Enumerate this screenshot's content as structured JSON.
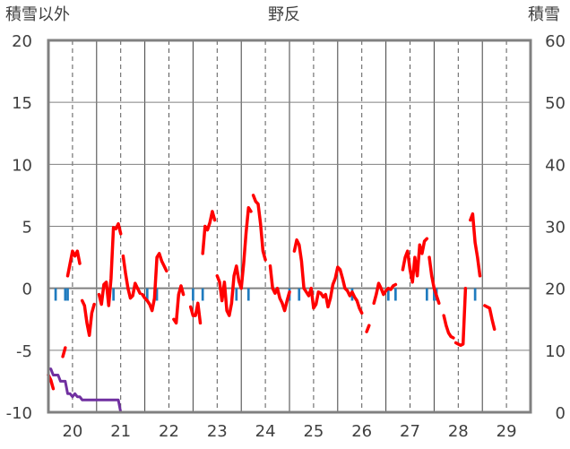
{
  "chart_data": {
    "type": "line",
    "title": "野反",
    "left_axis_label": "積雪以外",
    "right_axis_label": "積雪",
    "left_ylim": [
      -10,
      20
    ],
    "left_yticks": [
      "-10",
      "-5",
      "0",
      "5",
      "10",
      "15",
      "20"
    ],
    "right_ylim": [
      0,
      60
    ],
    "right_yticks": [
      "0",
      "10",
      "20",
      "30",
      "40",
      "50",
      "60"
    ],
    "xlim": [
      19.5,
      29.5
    ],
    "xticks": [
      "20",
      "21",
      "22",
      "23",
      "24",
      "25",
      "26",
      "27",
      "28",
      "29"
    ],
    "grid": true,
    "colors": {
      "temperature": "#ff0000",
      "precip": "#1f7bbf",
      "snow": "#7030a0",
      "frame": "#808080"
    },
    "series": [
      {
        "type": "line",
        "axis": "left",
        "color": "#ff0000",
        "segments": [
          [
            [
              19.5,
              -7.0
            ],
            [
              19.55,
              -7.4
            ],
            [
              19.6,
              -8.1
            ]
          ],
          [
            [
              19.8,
              -5.5
            ],
            [
              19.85,
              -4.8
            ]
          ],
          [
            [
              19.9,
              1.0
            ],
            [
              19.95,
              2.0
            ],
            [
              20.0,
              3.0
            ],
            [
              20.05,
              2.6
            ],
            [
              20.1,
              3.0
            ],
            [
              20.15,
              2.0
            ]
          ],
          [
            [
              20.2,
              -1.0
            ],
            [
              20.25,
              -1.4
            ],
            [
              20.3,
              -2.8
            ],
            [
              20.35,
              -3.8
            ],
            [
              20.4,
              -2.0
            ],
            [
              20.45,
              -1.3
            ]
          ],
          [
            [
              20.55,
              -0.5
            ],
            [
              20.6,
              -1.3
            ],
            [
              20.65,
              0.3
            ],
            [
              20.7,
              0.5
            ],
            [
              20.75,
              -1.4
            ],
            [
              20.8,
              0.8
            ],
            [
              20.85,
              4.9
            ],
            [
              20.9,
              4.8
            ],
            [
              20.95,
              5.2
            ],
            [
              21.0,
              4.4
            ]
          ],
          [
            [
              21.05,
              2.6
            ],
            [
              21.1,
              1.2
            ],
            [
              21.15,
              0.0
            ],
            [
              21.2,
              -0.8
            ],
            [
              21.25,
              -0.6
            ],
            [
              21.3,
              0.4
            ],
            [
              21.35,
              0.0
            ],
            [
              21.4,
              -0.4
            ]
          ],
          [
            [
              21.45,
              -0.5
            ],
            [
              21.5,
              -0.8
            ],
            [
              21.55,
              -1.0
            ],
            [
              21.6,
              -1.3
            ],
            [
              21.65,
              -1.8
            ],
            [
              21.7,
              -0.8
            ],
            [
              21.75,
              2.5
            ],
            [
              21.8,
              2.8
            ],
            [
              21.85,
              2.2
            ],
            [
              21.9,
              1.8
            ],
            [
              21.95,
              1.4
            ]
          ],
          [
            [
              22.1,
              -2.5
            ],
            [
              22.15,
              -2.8
            ],
            [
              22.2,
              -0.5
            ],
            [
              22.25,
              0.2
            ],
            [
              22.3,
              -0.5
            ]
          ],
          [
            [
              22.45,
              -1.5
            ],
            [
              22.5,
              -2.2
            ],
            [
              22.55,
              -2.2
            ],
            [
              22.6,
              -1.2
            ],
            [
              22.65,
              -2.8
            ]
          ],
          [
            [
              22.7,
              2.8
            ],
            [
              22.75,
              5.0
            ],
            [
              22.8,
              4.7
            ],
            [
              22.85,
              5.3
            ],
            [
              22.9,
              6.2
            ],
            [
              22.95,
              5.5
            ]
          ],
          [
            [
              23.0,
              1.0
            ],
            [
              23.05,
              0.5
            ],
            [
              23.1,
              -1.0
            ],
            [
              23.15,
              0.5
            ],
            [
              23.2,
              -1.8
            ],
            [
              23.25,
              -2.2
            ],
            [
              23.3,
              -1.2
            ],
            [
              23.35,
              1.0
            ],
            [
              23.4,
              1.8
            ],
            [
              23.45,
              0.6
            ],
            [
              23.5,
              0.0
            ],
            [
              23.55,
              2.0
            ],
            [
              23.6,
              4.5
            ],
            [
              23.65,
              6.5
            ],
            [
              23.7,
              6.2
            ]
          ],
          [
            [
              23.75,
              7.5
            ],
            [
              23.8,
              7.0
            ],
            [
              23.85,
              6.8
            ],
            [
              23.9,
              5.2
            ],
            [
              23.95,
              3.0
            ],
            [
              24.0,
              2.3
            ]
          ],
          [
            [
              24.1,
              1.8
            ],
            [
              24.15,
              0.0
            ],
            [
              24.2,
              -0.4
            ],
            [
              24.25,
              0.0
            ],
            [
              24.3,
              -0.8
            ],
            [
              24.35,
              -1.2
            ],
            [
              24.4,
              -1.8
            ],
            [
              24.45,
              -1.0
            ],
            [
              24.5,
              -0.3
            ]
          ],
          [
            [
              24.6,
              3.0
            ],
            [
              24.65,
              3.9
            ],
            [
              24.7,
              3.5
            ],
            [
              24.75,
              2.2
            ],
            [
              24.8,
              0.0
            ],
            [
              24.85,
              -0.3
            ],
            [
              24.9,
              -0.6
            ],
            [
              24.95,
              0.0
            ],
            [
              25.0,
              -1.6
            ],
            [
              25.05,
              -1.3
            ],
            [
              25.1,
              -0.3
            ],
            [
              25.15,
              -0.4
            ],
            [
              25.2,
              -0.7
            ],
            [
              25.25,
              -0.5
            ],
            [
              25.3,
              -1.5
            ],
            [
              25.35,
              -0.8
            ],
            [
              25.4,
              0.3
            ],
            [
              25.45,
              0.8
            ],
            [
              25.5,
              1.7
            ],
            [
              25.55,
              1.5
            ],
            [
              25.6,
              0.8
            ],
            [
              25.65,
              0.0
            ],
            [
              25.7,
              -0.2
            ],
            [
              25.75,
              -0.6
            ],
            [
              25.8,
              -0.3
            ],
            [
              25.85,
              -0.7
            ],
            [
              25.9,
              -1.0
            ],
            [
              25.95,
              -1.6
            ],
            [
              26.0,
              -2.0
            ]
          ],
          [
            [
              26.1,
              -3.5
            ],
            [
              26.15,
              -3.0
            ]
          ],
          [
            [
              26.25,
              -1.2
            ],
            [
              26.3,
              -0.5
            ],
            [
              26.35,
              0.4
            ],
            [
              26.4,
              0.0
            ],
            [
              26.45,
              -0.5
            ],
            [
              26.5,
              -0.2
            ],
            [
              26.55,
              0.0
            ],
            [
              26.6,
              -0.1
            ],
            [
              26.65,
              0.2
            ],
            [
              26.7,
              0.3
            ]
          ],
          [
            [
              26.85,
              1.5
            ],
            [
              26.9,
              2.5
            ],
            [
              26.95,
              3.0
            ],
            [
              27.0,
              1.5
            ],
            [
              27.05,
              0.5
            ],
            [
              27.1,
              2.5
            ],
            [
              27.15,
              1.0
            ],
            [
              27.2,
              3.5
            ],
            [
              27.25,
              2.8
            ],
            [
              27.3,
              3.8
            ],
            [
              27.35,
              4.0
            ]
          ],
          [
            [
              27.4,
              2.5
            ],
            [
              27.45,
              1.0
            ],
            [
              27.5,
              0.0
            ],
            [
              27.55,
              -0.6
            ],
            [
              27.6,
              -1.2
            ]
          ],
          [
            [
              27.7,
              -2.2
            ],
            [
              27.75,
              -3.0
            ],
            [
              27.8,
              -3.6
            ],
            [
              27.85,
              -3.9
            ],
            [
              27.9,
              -4.0
            ]
          ],
          [
            [
              27.95,
              -4.4
            ],
            [
              28.0,
              -4.5
            ],
            [
              28.05,
              -4.6
            ],
            [
              28.1,
              -4.5
            ],
            [
              28.15,
              0.0
            ]
          ],
          [
            [
              28.25,
              5.5
            ],
            [
              28.3,
              6.0
            ],
            [
              28.35,
              3.7
            ],
            [
              28.4,
              2.5
            ],
            [
              28.45,
              1.0
            ]
          ],
          [
            [
              28.55,
              -1.4
            ],
            [
              28.6,
              -1.5
            ],
            [
              28.65,
              -1.6
            ],
            [
              28.7,
              -2.5
            ],
            [
              28.75,
              -3.3
            ]
          ]
        ]
      },
      {
        "type": "line",
        "axis": "right",
        "color": "#7030a0",
        "points": [
          [
            19.5,
            7.0
          ],
          [
            19.55,
            7.0
          ],
          [
            19.6,
            6.0
          ],
          [
            19.65,
            6.0
          ],
          [
            19.7,
            6.0
          ],
          [
            19.75,
            5.0
          ],
          [
            19.8,
            5.0
          ],
          [
            19.85,
            5.0
          ],
          [
            19.9,
            3.0
          ],
          [
            19.95,
            3.0
          ],
          [
            20.0,
            2.5
          ],
          [
            20.05,
            3.0
          ],
          [
            20.1,
            2.5
          ],
          [
            20.15,
            2.5
          ],
          [
            20.2,
            2.0
          ],
          [
            20.25,
            2.0
          ],
          [
            20.3,
            2.0
          ],
          [
            20.35,
            2.0
          ],
          [
            20.4,
            2.0
          ],
          [
            20.45,
            2.0
          ],
          [
            20.5,
            2.0
          ],
          [
            20.55,
            2.0
          ],
          [
            20.6,
            2.0
          ],
          [
            20.65,
            2.0
          ],
          [
            20.7,
            2.0
          ],
          [
            20.75,
            2.0
          ],
          [
            20.8,
            2.0
          ],
          [
            20.85,
            2.0
          ],
          [
            20.9,
            2.0
          ],
          [
            20.95,
            2.0
          ],
          [
            21.0,
            0.0
          ],
          [
            21.05,
            0.0
          ],
          [
            28.8,
            0.0
          ]
        ]
      },
      {
        "type": "bar",
        "axis": "left",
        "color": "#1f7bbf",
        "width": 0.05,
        "points": [
          [
            19.65,
            -1.0
          ],
          [
            19.85,
            -1.0
          ],
          [
            19.9,
            -1.0
          ],
          [
            20.85,
            -1.0
          ],
          [
            21.55,
            -1.0
          ],
          [
            21.75,
            -1.0
          ],
          [
            22.5,
            -1.0
          ],
          [
            22.7,
            -1.0
          ],
          [
            23.4,
            -1.0
          ],
          [
            23.65,
            -1.0
          ],
          [
            24.5,
            -1.0
          ],
          [
            24.7,
            -1.0
          ],
          [
            25.8,
            -1.0
          ],
          [
            26.55,
            -1.0
          ],
          [
            26.7,
            -1.0
          ],
          [
            27.35,
            -1.0
          ],
          [
            27.5,
            -1.0
          ],
          [
            27.55,
            -1.0
          ],
          [
            28.35,
            -1.0
          ]
        ]
      }
    ]
  }
}
